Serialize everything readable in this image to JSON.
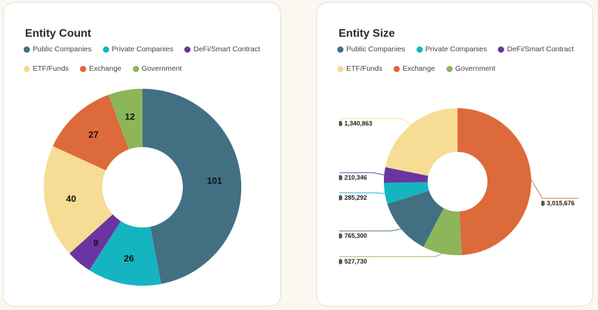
{
  "chart_data": [
    {
      "type": "pie",
      "title": "Entity Count",
      "categories": [
        "Public Companies",
        "Private Companies",
        "DeFi/Smart Contract",
        "ETF/Funds",
        "Exchange",
        "Government"
      ],
      "values": [
        101,
        26,
        9,
        40,
        27,
        12
      ],
      "data_labels": [
        "101",
        "26",
        "9",
        "40",
        "27",
        "12"
      ],
      "colors": [
        "#426f82",
        "#14b5c0",
        "#6a35a0",
        "#f6dc94",
        "#dd6a3a",
        "#8cb659"
      ],
      "donut": true,
      "legend": "top"
    },
    {
      "type": "pie",
      "title": "Entity Size",
      "categories": [
        "Public Companies",
        "Private Companies",
        "DeFi/Smart Contract",
        "ETF/Funds",
        "Exchange",
        "Government"
      ],
      "slice_order": [
        "Exchange",
        "Government",
        "Public Companies",
        "Private Companies",
        "DeFi/Smart Contract",
        "ETF/Funds"
      ],
      "values": [
        765300,
        285292,
        210346,
        1340863,
        3015676,
        527730
      ],
      "data_labels": [
        "฿ 765,300",
        "฿ 285,292",
        "฿ 210,346",
        "฿ 1,340,863",
        "฿ 3,015,676",
        "฿ 527,730"
      ],
      "colors": [
        "#426f82",
        "#14b5c0",
        "#6a35a0",
        "#f6dc94",
        "#dd6a3a",
        "#8cb659"
      ],
      "donut": true,
      "legend": "top"
    }
  ]
}
